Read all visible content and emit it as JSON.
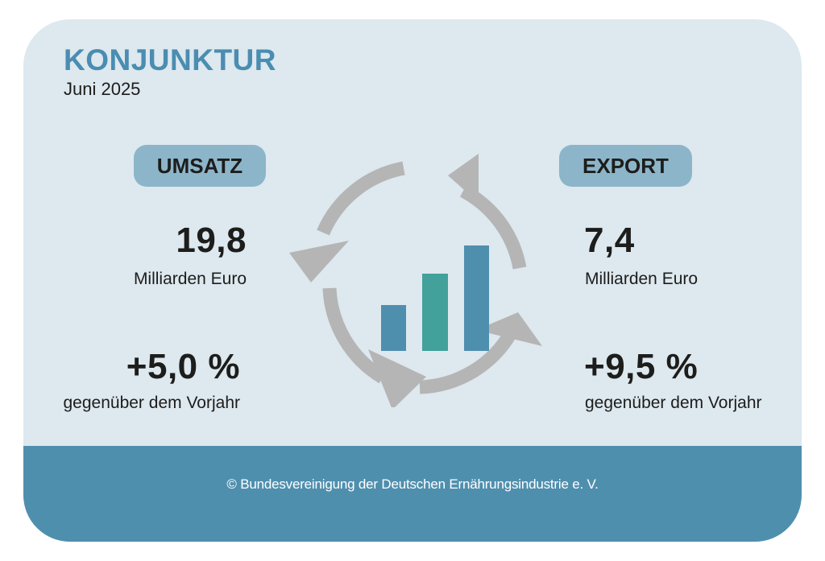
{
  "header": {
    "title": "KONJUNKTUR",
    "date": "Juni 2025"
  },
  "umsatz": {
    "label": "UMSATZ",
    "value": "19,8",
    "unit": "Milliarden Euro",
    "change": "+5,0 %",
    "compare": "gegenüber dem Vorjahr"
  },
  "export": {
    "label": "EXPORT",
    "value": "7,4",
    "unit": "Milliarden Euro",
    "change": "+9,5 %",
    "compare": "gegenüber dem Vorjahr"
  },
  "footer": {
    "copyright": "© Bundesvereinigung der Deutschen Ernährungsindustrie e. V."
  },
  "graphic": {
    "icon": "cycle-arrows-bar-chart-icon",
    "arrow_color": "#b5b5b5",
    "bar_colors": [
      "#4f8fae",
      "#42a19a",
      "#4f8fae"
    ]
  },
  "colors": {
    "background": "#dde8ef",
    "accent": "#4a8db1",
    "pill": "#8cb5ca",
    "footer": "#4f8fae"
  }
}
